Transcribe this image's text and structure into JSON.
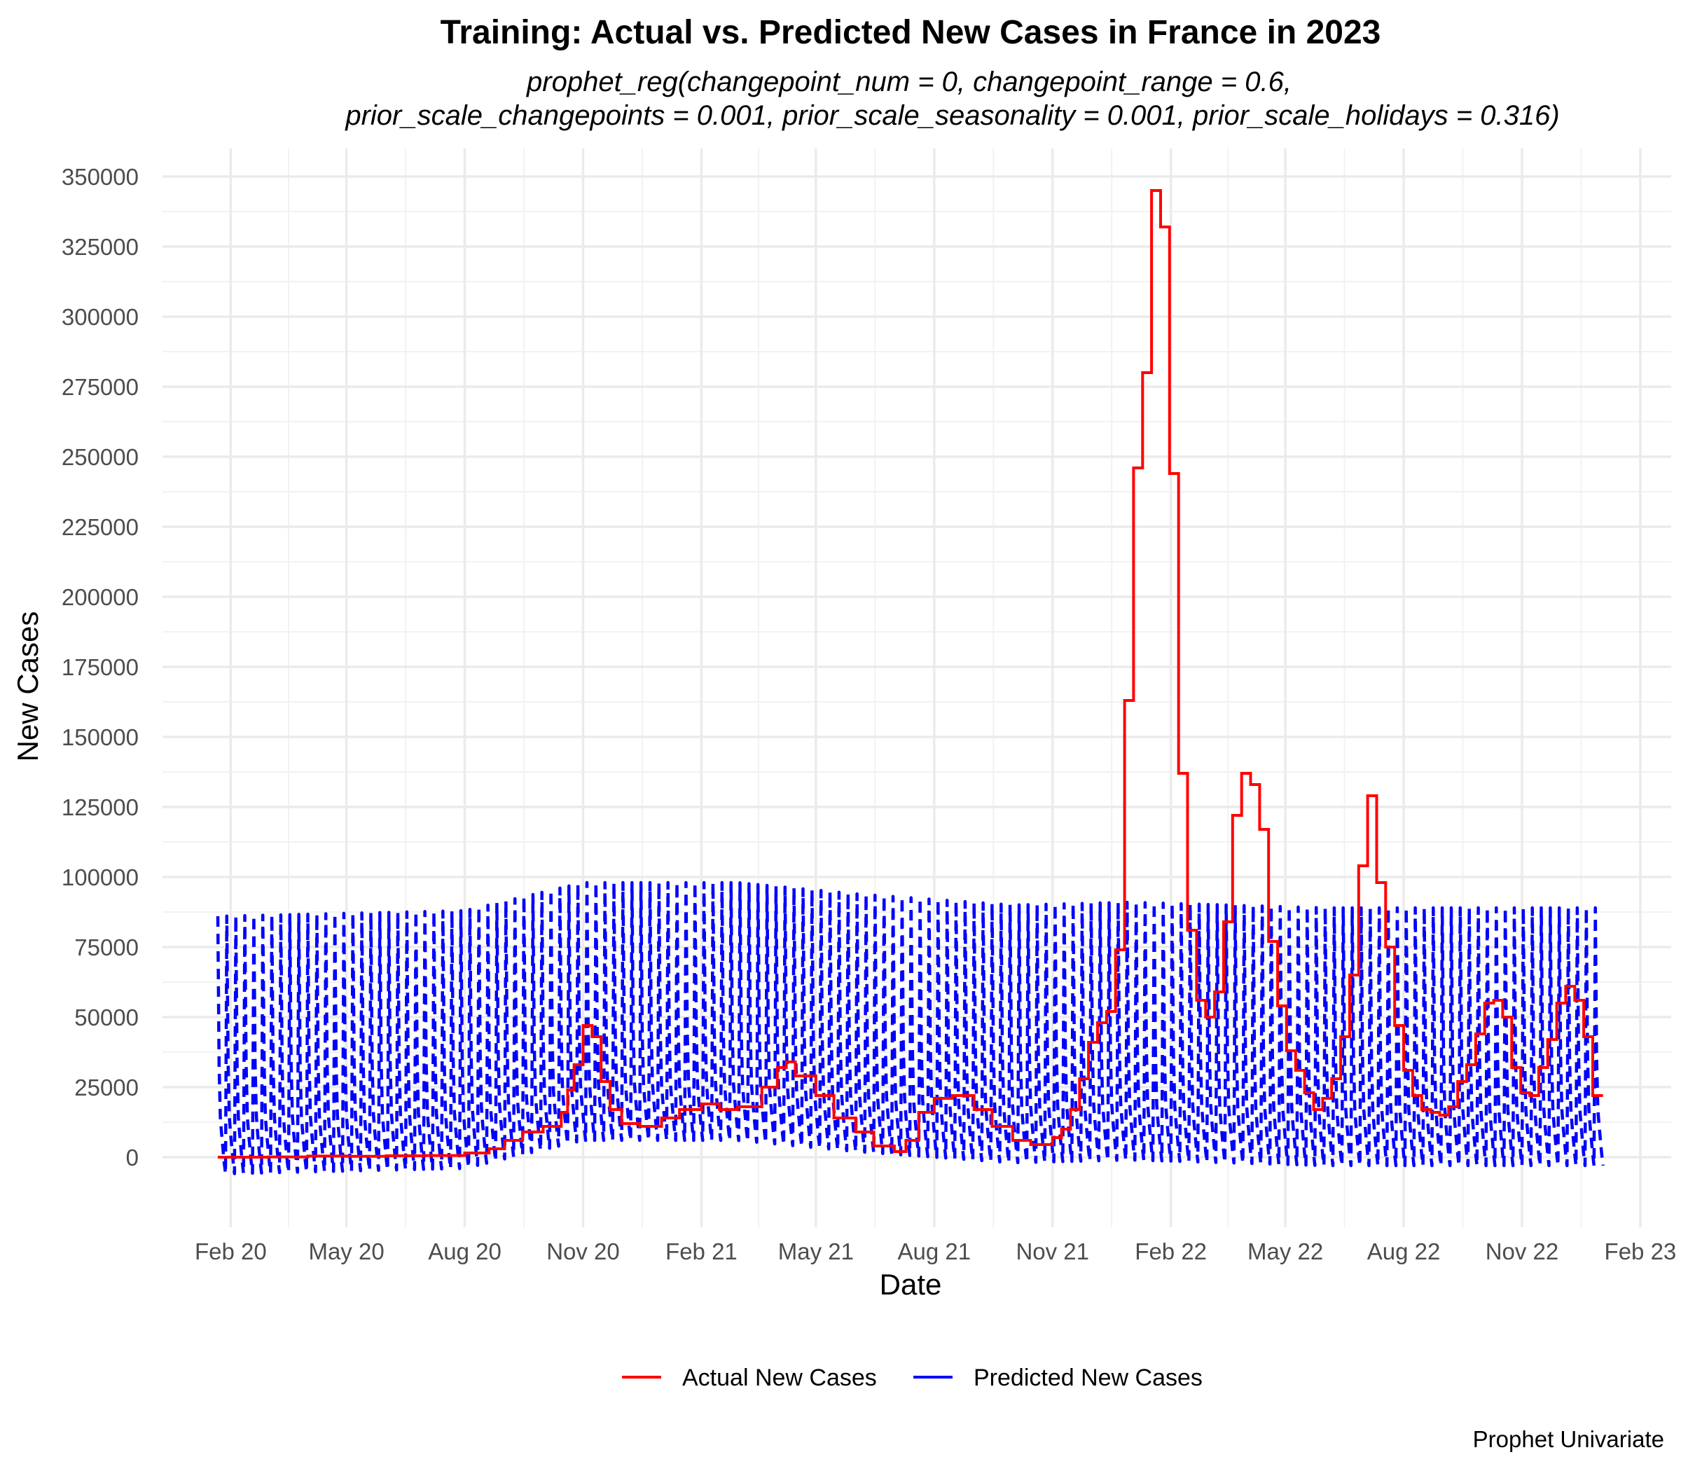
{
  "chart_data": {
    "type": "line",
    "title": "Training: Actual vs. Predicted New Cases in France in 2023",
    "subtitle_lines": [
      "prophet_reg(changepoint_num = 0, changepoint_range = 0.6,",
      "prior_scale_changepoints = 0.001, prior_scale_seasonality = 0.001, prior_scale_holidays = 0.316)"
    ],
    "xlabel": "Date",
    "ylabel": "New Cases",
    "caption": "Prophet Univariate",
    "x_ticks": [
      {
        "date": "2020-02-01",
        "label": "Feb 20"
      },
      {
        "date": "2020-05-01",
        "label": "May 20"
      },
      {
        "date": "2020-08-01",
        "label": "Aug 20"
      },
      {
        "date": "2020-11-01",
        "label": "Nov 20"
      },
      {
        "date": "2021-02-01",
        "label": "Feb 21"
      },
      {
        "date": "2021-05-01",
        "label": "May 21"
      },
      {
        "date": "2021-08-01",
        "label": "Aug 21"
      },
      {
        "date": "2021-11-01",
        "label": "Nov 21"
      },
      {
        "date": "2022-02-01",
        "label": "Feb 22"
      },
      {
        "date": "2022-05-01",
        "label": "May 22"
      },
      {
        "date": "2022-08-01",
        "label": "Aug 22"
      },
      {
        "date": "2022-11-01",
        "label": "Nov 22"
      },
      {
        "date": "2023-02-01",
        "label": "Feb 23"
      }
    ],
    "y_ticks": [
      0,
      25000,
      50000,
      75000,
      100000,
      125000,
      150000,
      175000,
      200000,
      225000,
      250000,
      275000,
      300000,
      325000,
      350000
    ],
    "xlim": [
      "2019-12-10",
      "2023-02-25"
    ],
    "ylim": [
      -25000,
      360000
    ],
    "grid": true,
    "legend_position": "bottom",
    "series": [
      {
        "name": "Actual New Cases",
        "color": "#ff0000",
        "line_style": "solid",
        "step": true,
        "points": [
          [
            "2020-01-22",
            0
          ],
          [
            "2020-03-01",
            100
          ],
          [
            "2020-04-01",
            400
          ],
          [
            "2020-05-01",
            300
          ],
          [
            "2020-06-01",
            500
          ],
          [
            "2020-07-01",
            600
          ],
          [
            "2020-08-01",
            1500
          ],
          [
            "2020-08-20",
            3000
          ],
          [
            "2020-09-01",
            6000
          ],
          [
            "2020-09-15",
            9000
          ],
          [
            "2020-10-01",
            11000
          ],
          [
            "2020-10-15",
            16000
          ],
          [
            "2020-10-20",
            24000
          ],
          [
            "2020-10-25",
            33000
          ],
          [
            "2020-11-01",
            47000
          ],
          [
            "2020-11-08",
            43000
          ],
          [
            "2020-11-15",
            27000
          ],
          [
            "2020-11-22",
            17000
          ],
          [
            "2020-12-01",
            12000
          ],
          [
            "2020-12-15",
            11000
          ],
          [
            "2021-01-01",
            14000
          ],
          [
            "2021-01-15",
            17000
          ],
          [
            "2021-02-01",
            19000
          ],
          [
            "2021-02-15",
            17000
          ],
          [
            "2021-03-01",
            18000
          ],
          [
            "2021-03-20",
            25000
          ],
          [
            "2021-04-01",
            32000
          ],
          [
            "2021-04-08",
            34000
          ],
          [
            "2021-04-15",
            29000
          ],
          [
            "2021-05-01",
            22000
          ],
          [
            "2021-05-15",
            14000
          ],
          [
            "2021-06-01",
            9000
          ],
          [
            "2021-06-15",
            4000
          ],
          [
            "2021-07-01",
            2000
          ],
          [
            "2021-07-10",
            6000
          ],
          [
            "2021-07-20",
            16000
          ],
          [
            "2021-08-01",
            21000
          ],
          [
            "2021-08-15",
            22000
          ],
          [
            "2021-09-01",
            17000
          ],
          [
            "2021-09-15",
            11000
          ],
          [
            "2021-10-01",
            6000
          ],
          [
            "2021-10-15",
            4500
          ],
          [
            "2021-11-01",
            7000
          ],
          [
            "2021-11-08",
            10000
          ],
          [
            "2021-11-15",
            17000
          ],
          [
            "2021-11-22",
            28000
          ],
          [
            "2021-11-29",
            41000
          ],
          [
            "2021-12-06",
            48000
          ],
          [
            "2021-12-13",
            52000
          ],
          [
            "2021-12-20",
            74000
          ],
          [
            "2021-12-27",
            163000
          ],
          [
            "2022-01-03",
            246000
          ],
          [
            "2022-01-10",
            280000
          ],
          [
            "2022-01-17",
            345000
          ],
          [
            "2022-01-24",
            332000
          ],
          [
            "2022-01-31",
            244000
          ],
          [
            "2022-02-07",
            137000
          ],
          [
            "2022-02-14",
            81000
          ],
          [
            "2022-02-21",
            56000
          ],
          [
            "2022-02-28",
            50000
          ],
          [
            "2022-03-07",
            59000
          ],
          [
            "2022-03-14",
            84000
          ],
          [
            "2022-03-21",
            122000
          ],
          [
            "2022-03-28",
            137000
          ],
          [
            "2022-04-04",
            133000
          ],
          [
            "2022-04-11",
            117000
          ],
          [
            "2022-04-18",
            77000
          ],
          [
            "2022-04-25",
            54000
          ],
          [
            "2022-05-02",
            38000
          ],
          [
            "2022-05-09",
            31000
          ],
          [
            "2022-05-16",
            23000
          ],
          [
            "2022-05-23",
            17000
          ],
          [
            "2022-05-30",
            21000
          ],
          [
            "2022-06-06",
            28000
          ],
          [
            "2022-06-13",
            43000
          ],
          [
            "2022-06-20",
            65000
          ],
          [
            "2022-06-27",
            104000
          ],
          [
            "2022-07-04",
            129000
          ],
          [
            "2022-07-11",
            98000
          ],
          [
            "2022-07-18",
            75000
          ],
          [
            "2022-07-25",
            47000
          ],
          [
            "2022-08-01",
            31000
          ],
          [
            "2022-08-08",
            22000
          ],
          [
            "2022-08-15",
            17000
          ],
          [
            "2022-08-22",
            16000
          ],
          [
            "2022-08-29",
            15000
          ],
          [
            "2022-09-05",
            18000
          ],
          [
            "2022-09-12",
            27000
          ],
          [
            "2022-09-19",
            33000
          ],
          [
            "2022-09-26",
            44000
          ],
          [
            "2022-10-03",
            55000
          ],
          [
            "2022-10-10",
            56000
          ],
          [
            "2022-10-17",
            50000
          ],
          [
            "2022-10-24",
            32000
          ],
          [
            "2022-10-31",
            23000
          ],
          [
            "2022-11-07",
            22000
          ],
          [
            "2022-11-14",
            32000
          ],
          [
            "2022-11-21",
            42000
          ],
          [
            "2022-11-28",
            55000
          ],
          [
            "2022-12-05",
            61000
          ],
          [
            "2022-12-12",
            56000
          ],
          [
            "2022-12-19",
            43000
          ],
          [
            "2022-12-26",
            22000
          ],
          [
            "2023-01-03",
            22000
          ]
        ]
      },
      {
        "name": "Predicted New Cases",
        "color": "#0000ff",
        "line_style": "dashed",
        "start": "2020-01-22",
        "end": "2023-01-03",
        "weekly_profile": [
          86000,
          33000,
          14000,
          8000,
          3000,
          -2000,
          -6000
        ],
        "level_trend": [
          [
            "2020-01-22",
            0
          ],
          [
            "2020-08-01",
            2000
          ],
          [
            "2020-11-01",
            12000
          ],
          [
            "2021-03-01",
            12000
          ],
          [
            "2021-06-01",
            8000
          ],
          [
            "2021-10-01",
            4000
          ],
          [
            "2022-01-01",
            5000
          ],
          [
            "2022-06-01",
            3000
          ],
          [
            "2023-01-03",
            3000
          ]
        ]
      }
    ]
  }
}
